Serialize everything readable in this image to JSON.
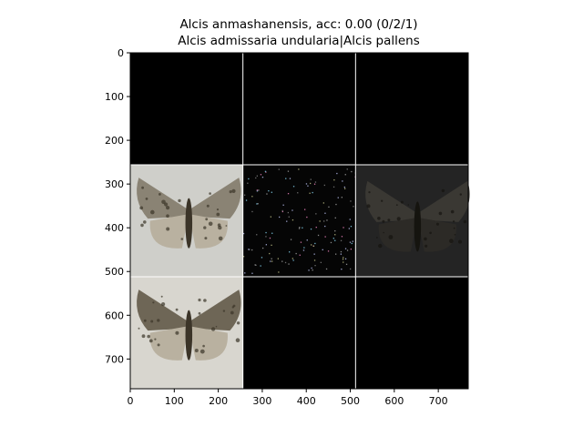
{
  "chart_data": {
    "type": "image-grid",
    "title_line1": "Alcis anmashanensis, acc: 0.00 (0/2/1)",
    "title_line2": "Alcis admissaria undularia|Alcis pallens",
    "xlim": [
      0,
      768
    ],
    "ylim": [
      768,
      0
    ],
    "x_ticks": [
      0,
      100,
      200,
      300,
      400,
      500,
      600,
      700
    ],
    "y_ticks": [
      0,
      100,
      200,
      300,
      400,
      500,
      600,
      700
    ],
    "grid_rows": 3,
    "grid_cols": 3,
    "tile_size": 256,
    "tiles": [
      {
        "row": 0,
        "col": 0,
        "content": "black",
        "fill": "#000000"
      },
      {
        "row": 0,
        "col": 1,
        "content": "black",
        "fill": "#000000"
      },
      {
        "row": 0,
        "col": 2,
        "content": "black",
        "fill": "#000000"
      },
      {
        "row": 1,
        "col": 0,
        "content": "moth-photo",
        "fill": "#cfcfca",
        "wing": "#8a8374"
      },
      {
        "row": 1,
        "col": 1,
        "content": "speckle-map",
        "fill": "#050505"
      },
      {
        "row": 1,
        "col": 2,
        "content": "dim-moth",
        "fill": "#242424",
        "wing": "#3a3833"
      },
      {
        "row": 2,
        "col": 0,
        "content": "moth-photo",
        "fill": "#d8d6cf",
        "wing": "#6e6656"
      },
      {
        "row": 2,
        "col": 1,
        "content": "black",
        "fill": "#000000"
      },
      {
        "row": 2,
        "col": 2,
        "content": "black",
        "fill": "#000000"
      }
    ]
  }
}
